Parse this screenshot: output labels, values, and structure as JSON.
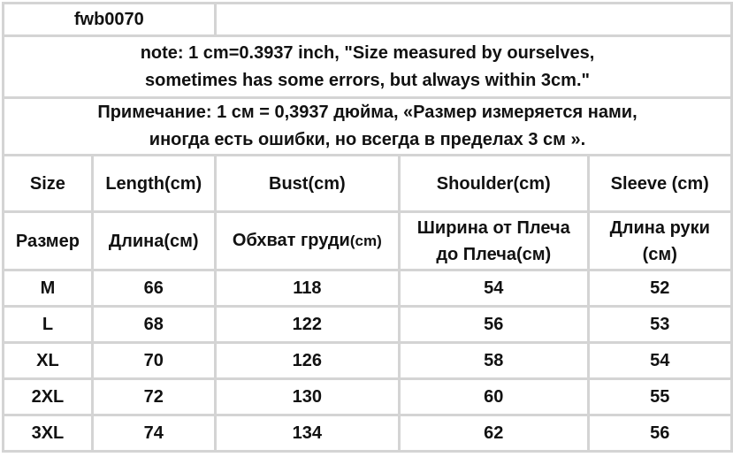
{
  "model_code": "fwb0070",
  "note_en": [
    "note: 1 cm=0.3937 inch, \"Size measured by ourselves,",
    "sometimes has some errors, but always within 3cm.\""
  ],
  "note_ru": [
    "Примечание: 1 см = 0,3937 дюйма, «Размер измеряется нами,",
    "иногда есть ошибки, но всегда в пределах 3 см »."
  ],
  "headers_en": [
    "Size",
    "Length(cm)",
    "Bust(cm)",
    "Shoulder(cm)",
    "Sleeve (cm)"
  ],
  "headers_ru": {
    "size": "Размер",
    "length": "Длина(см)",
    "bust": "Обхват груди",
    "bust_unit": "(cm)",
    "shoulder": [
      "Ширина от Плеча",
      "до Плеча(см)"
    ],
    "sleeve": [
      "Длина руки",
      "(см)"
    ]
  },
  "rows": [
    [
      "M",
      "66",
      "118",
      "54",
      "52"
    ],
    [
      "L",
      "68",
      "122",
      "56",
      "53"
    ],
    [
      "XL",
      "70",
      "126",
      "58",
      "54"
    ],
    [
      "2XL",
      "72",
      "130",
      "60",
      "55"
    ],
    [
      "3XL",
      "74",
      "134",
      "62",
      "56"
    ]
  ],
  "colors": {
    "grid": "#d4d4d4",
    "text": "#111111"
  }
}
